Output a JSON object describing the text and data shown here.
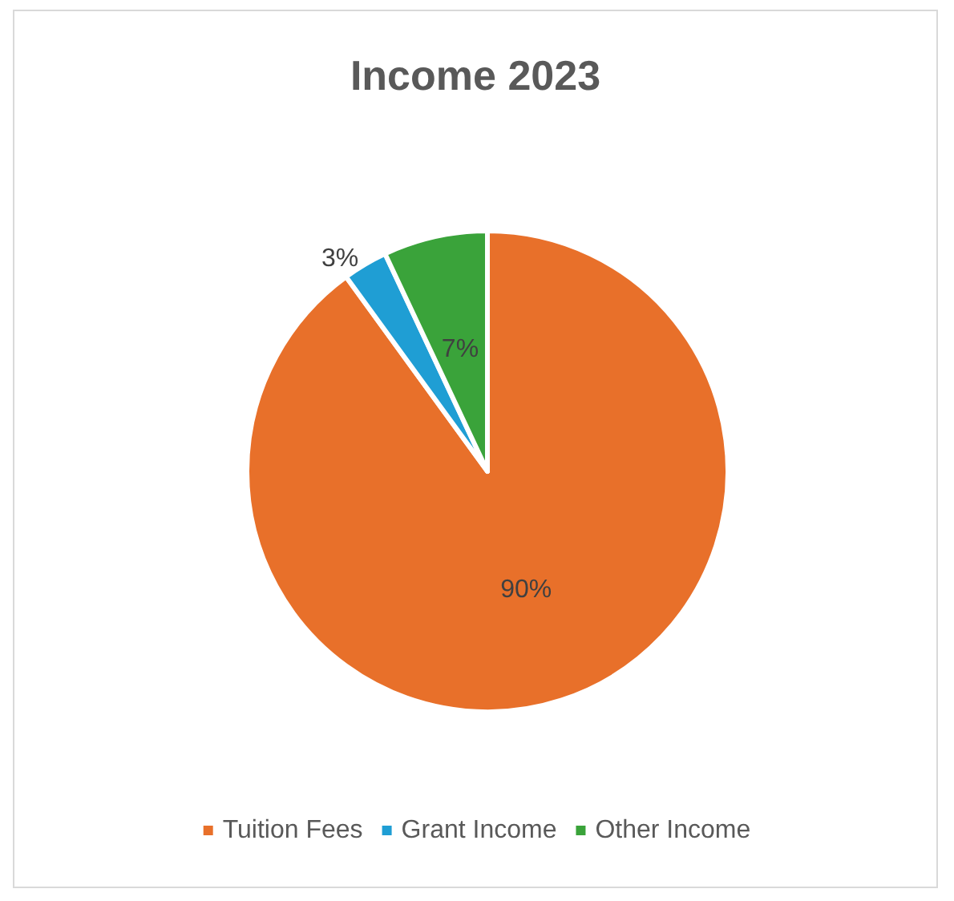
{
  "chart_data": {
    "type": "pie",
    "title": "Income 2023",
    "categories": [
      "Tuition Fees",
      "Grant Income",
      "Other Income"
    ],
    "values": [
      90,
      3,
      7
    ],
    "colors": [
      "#e8702a",
      "#1f9ed4",
      "#3aa33a"
    ],
    "value_labels": [
      "90%",
      "3%",
      "7%"
    ],
    "legend": "bottom"
  }
}
